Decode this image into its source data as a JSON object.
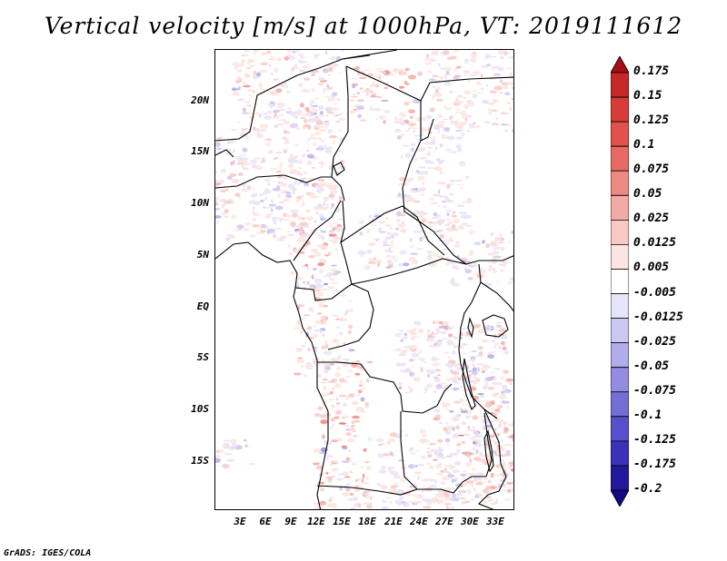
{
  "title": "Vertical velocity [m/s] at 1000hPa, VT: 2019111612",
  "footer": "GrADS: IGES/COLA",
  "lat_labels": [
    "20N",
    "15N",
    "10N",
    "5N",
    "EQ",
    "5S",
    "10S",
    "15S"
  ],
  "lon_labels": [
    "3E",
    "6E",
    "9E",
    "12E",
    "15E",
    "18E",
    "21E",
    "24E",
    "27E",
    "30E",
    "33E"
  ],
  "colorbar": {
    "labels": [
      "0.175",
      "0.15",
      "0.125",
      "0.1",
      "0.075",
      "0.05",
      "0.025",
      "0.0125",
      "0.005",
      "-0.005",
      "-0.0125",
      "-0.025",
      "-0.05",
      "-0.075",
      "-0.1",
      "-0.125",
      "-0.175",
      "-0.2"
    ],
    "colors": [
      "#a50f15",
      "#c62828",
      "#d93b36",
      "#e2514b",
      "#e86a62",
      "#ee8a83",
      "#f4aaa4",
      "#f8c9c5",
      "#fbe4e1",
      "#ffffff",
      "#e6e4f8",
      "#cdc8f1",
      "#b2acea",
      "#938ce0",
      "#746ed7",
      "#5650cc",
      "#3a32b8",
      "#22189c",
      "#120a80"
    ]
  }
}
